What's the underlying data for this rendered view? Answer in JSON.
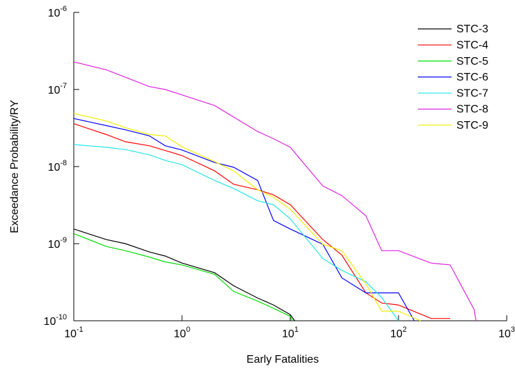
{
  "chart_data": {
    "type": "line",
    "xlabel": "Early Fatalities",
    "ylabel": "Exceedance Probability/RY",
    "xlog": true,
    "ylog": true,
    "legend": "upper right",
    "xlim": [
      0.1,
      1000
    ],
    "ylim": [
      1e-10,
      1e-06
    ],
    "xticks": [
      {
        "value": 0.1,
        "label": "10",
        "exponent": "-1"
      },
      {
        "value": 1,
        "label": "10",
        "exponent": "0"
      },
      {
        "value": 10,
        "label": "10",
        "exponent": "1"
      },
      {
        "value": 100,
        "label": "10",
        "exponent": "2"
      },
      {
        "value": 1000,
        "label": "10",
        "exponent": "3"
      }
    ],
    "yticks": [
      {
        "value": 1e-10,
        "label": "10",
        "exponent": "-10"
      },
      {
        "value": 1e-09,
        "label": "10",
        "exponent": "-9"
      },
      {
        "value": 1e-08,
        "label": "10",
        "exponent": "-8"
      },
      {
        "value": 1e-07,
        "label": "10",
        "exponent": "-7"
      },
      {
        "value": 1e-06,
        "label": "10",
        "exponent": "-6"
      }
    ],
    "series": [
      {
        "name": "STC-3",
        "color": "#000000",
        "x": [
          0.1,
          0.2,
          0.3,
          0.5,
          0.7,
          1,
          2,
          3,
          5,
          7,
          10,
          11
        ],
        "values": [
          1.55e-09,
          1.13e-09,
          1e-09,
          7.8e-10,
          6.9e-10,
          5.6e-10,
          4.2e-10,
          2.85e-10,
          1.97e-10,
          1.6e-10,
          1.2e-10,
          1e-10
        ]
      },
      {
        "name": "STC-4",
        "color": "#ff0000",
        "x": [
          0.1,
          0.2,
          0.3,
          0.5,
          1,
          2,
          3,
          5,
          7,
          10,
          20,
          30,
          50,
          70,
          100,
          200,
          300
        ],
        "values": [
          3.6e-08,
          2.6e-08,
          2.1e-08,
          1.86e-08,
          1.39e-08,
          8.8e-09,
          5.9e-09,
          5e-09,
          4.3e-09,
          3.2e-09,
          1.13e-09,
          7.1e-10,
          2.3e-10,
          1.7e-10,
          1.6e-10,
          1.07e-10,
          1.07e-10
        ]
      },
      {
        "name": "STC-5",
        "color": "#00dd00",
        "x": [
          0.1,
          0.2,
          0.3,
          0.5,
          0.7,
          1,
          2,
          3,
          5,
          7,
          10,
          10.5
        ],
        "values": [
          1.35e-09,
          9.2e-10,
          8.1e-10,
          6.7e-10,
          5.8e-10,
          5.3e-10,
          4e-10,
          2.4e-10,
          1.8e-10,
          1.45e-10,
          1.14e-10,
          1e-10
        ]
      },
      {
        "name": "STC-6",
        "color": "#0000ff",
        "x": [
          0.1,
          0.2,
          0.3,
          0.5,
          0.7,
          1,
          2,
          3,
          5,
          7,
          10,
          20,
          30,
          50,
          70,
          100,
          140
        ],
        "values": [
          4.2e-08,
          3.4e-08,
          3e-08,
          2.5e-08,
          1.86e-08,
          1.64e-08,
          1.13e-08,
          9.8e-09,
          6.6e-09,
          2e-09,
          1.55e-09,
          9.8e-10,
          3.6e-10,
          2.3e-10,
          2.3e-10,
          2.3e-10,
          1e-10
        ]
      },
      {
        "name": "STC-7",
        "color": "#22e5e5",
        "x": [
          0.1,
          0.2,
          0.3,
          0.5,
          0.7,
          1,
          2,
          3,
          5,
          7,
          10,
          20,
          30,
          50,
          70,
          100
        ],
        "values": [
          1.93e-08,
          1.78e-08,
          1.66e-08,
          1.42e-08,
          1.2e-08,
          1.06e-08,
          6.6e-09,
          5.2e-09,
          3.6e-09,
          3.2e-09,
          2.1e-09,
          6.4e-10,
          4.5e-10,
          3.2e-10,
          2e-10,
          1e-10
        ]
      },
      {
        "name": "STC-8",
        "color": "#dd22dd",
        "x": [
          0.1,
          0.2,
          0.5,
          0.7,
          2,
          5,
          7,
          10,
          20,
          30,
          50,
          70,
          100,
          200,
          300,
          500,
          520
        ],
        "values": [
          2.28e-07,
          1.8e-07,
          1.09e-07,
          1e-07,
          6.2e-08,
          2.85e-08,
          2.3e-08,
          1.78e-08,
          5.6e-09,
          4.2e-09,
          2.3e-09,
          8.1e-10,
          8.1e-10,
          5.6e-10,
          5.3e-10,
          1.4e-10,
          1e-10
        ]
      },
      {
        "name": "STC-9",
        "color": "#eeee00",
        "x": [
          0.1,
          0.2,
          0.3,
          0.5,
          0.7,
          1,
          2,
          3,
          5,
          7,
          10,
          20,
          30,
          50,
          70,
          100,
          160
        ],
        "values": [
          4.9e-08,
          3.9e-08,
          3.2e-08,
          2.6e-08,
          2.5e-08,
          1.8e-08,
          1.16e-08,
          8.8e-09,
          5e-09,
          4e-09,
          2.8e-09,
          9.8e-10,
          8.1e-10,
          3e-10,
          1.33e-10,
          1.33e-10,
          1e-10
        ]
      }
    ]
  }
}
